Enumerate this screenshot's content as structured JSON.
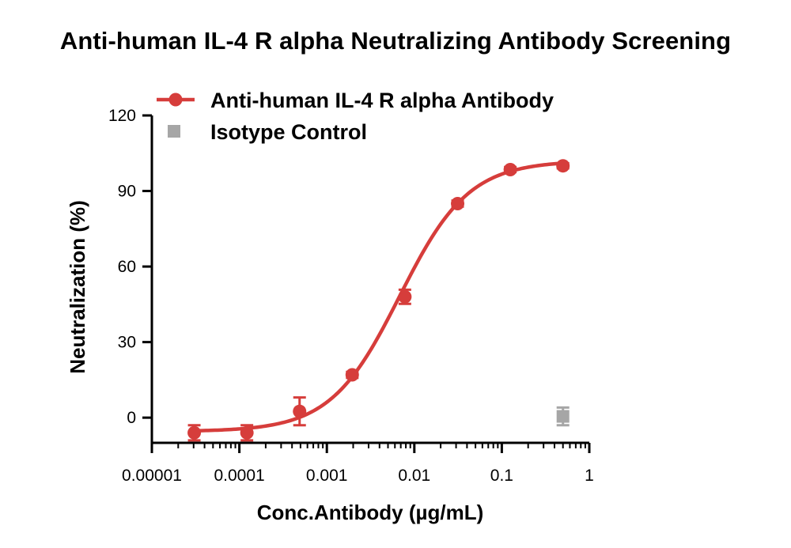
{
  "chart_data": {
    "type": "scatter",
    "title": "Anti-human IL-4 R alpha Neutralizing Antibody Screening",
    "xlabel": "Conc.Antibody (µg/mL)",
    "ylabel": "Neutralization (%)",
    "x_scale": "log",
    "xlim": [
      1e-05,
      1
    ],
    "ylim": [
      -10,
      120
    ],
    "x_ticks": [
      1e-05,
      0.0001,
      0.001,
      0.01,
      0.1,
      1
    ],
    "x_tick_labels": [
      "0.00001",
      "0.0001",
      "0.001",
      "0.01",
      "0.1",
      "1"
    ],
    "y_ticks": [
      0,
      30,
      60,
      90,
      120
    ],
    "y_tick_labels": [
      "0",
      "30",
      "60",
      "90",
      "120"
    ],
    "legend_position": "top-left",
    "grid": false,
    "series": [
      {
        "name": "Anti-human IL-4 R alpha Antibody",
        "color": "#d63d3b",
        "marker": "circle",
        "fit_curve": true,
        "fit": {
          "bottom": -5.5,
          "top": 102,
          "ec50": 0.0068,
          "hill": 1.1
        },
        "points": [
          {
            "x": 3.05e-05,
            "y": -6,
            "err": 3
          },
          {
            "x": 0.000122,
            "y": -6,
            "err": 3
          },
          {
            "x": 0.000488,
            "y": 2.5,
            "err": 5.5
          },
          {
            "x": 0.00195,
            "y": 17,
            "err": 1.2
          },
          {
            "x": 0.0078,
            "y": 48,
            "err": 2.8
          },
          {
            "x": 0.03125,
            "y": 85,
            "err": 1.2
          },
          {
            "x": 0.125,
            "y": 98.5,
            "err": 1
          },
          {
            "x": 0.5,
            "y": 100,
            "err": 1
          }
        ]
      },
      {
        "name": "Isotype Control",
        "color": "#a6a6a6",
        "marker": "square",
        "fit_curve": false,
        "points": [
          {
            "x": 0.5,
            "y": 0.5,
            "err": 3.5
          }
        ]
      }
    ]
  }
}
